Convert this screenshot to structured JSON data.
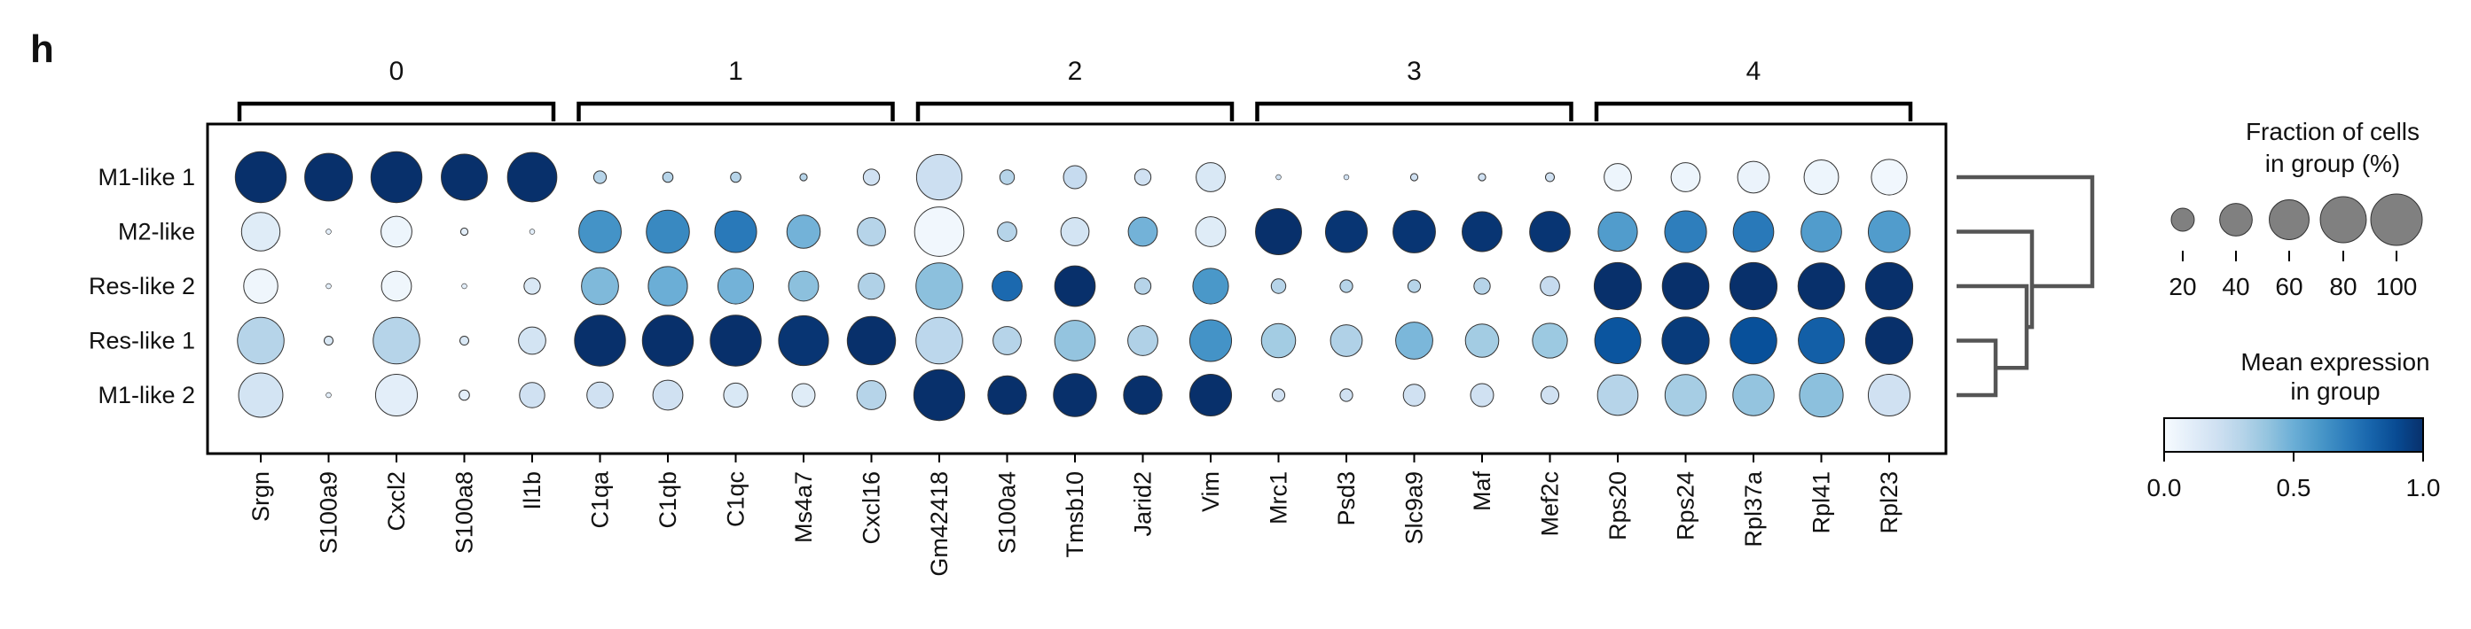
{
  "panel_label": "h",
  "chart_data": {
    "type": "dotplot",
    "groups": [
      "M1-like 1",
      "M2-like",
      "Res-like 2",
      "Res-like 1",
      "M1-like 2"
    ],
    "gene_groups": [
      {
        "label": "0",
        "genes": [
          "Srgn",
          "S100a9",
          "Cxcl2",
          "S100a8",
          "Il1b"
        ]
      },
      {
        "label": "1",
        "genes": [
          "C1qa",
          "C1qb",
          "C1qc",
          "Ms4a7",
          "Cxcl16"
        ]
      },
      {
        "label": "2",
        "genes": [
          "Gm42418",
          "S100a4",
          "Tmsb10",
          "Jarid2",
          "Vim"
        ]
      },
      {
        "label": "3",
        "genes": [
          "Mrc1",
          "Psd3",
          "Slc9a9",
          "Maf",
          "Mef2c"
        ]
      },
      {
        "label": "4",
        "genes": [
          "Rps20",
          "Rps24",
          "Rpl37a",
          "Rpl41",
          "Rpl23"
        ]
      }
    ],
    "genes": [
      "Srgn",
      "S100a9",
      "Cxcl2",
      "S100a8",
      "Il1b",
      "C1qa",
      "C1qb",
      "C1qc",
      "Ms4a7",
      "Cxcl16",
      "Gm42418",
      "S100a4",
      "Tmsb10",
      "Jarid2",
      "Vim",
      "Mrc1",
      "Psd3",
      "Slc9a9",
      "Maf",
      "Mef2c",
      "Rps20",
      "Rps24",
      "Rpl37a",
      "Rpl41",
      "Rpl23"
    ],
    "fraction_percent": [
      [
        98,
        86,
        98,
        80,
        92,
        6,
        4,
        4,
        2,
        10,
        78,
        8,
        20,
        10,
        32,
        1,
        1,
        2,
        2,
        3,
        28,
        32,
        38,
        45,
        48
      ],
      [
        56,
        1,
        36,
        2,
        1,
        68,
        70,
        66,
        42,
        30,
        92,
        14,
        30,
        32,
        34,
        80,
        66,
        68,
        60,
        62,
        58,
        66,
        62,
        62,
        66
      ],
      [
        44,
        1,
        34,
        1,
        10,
        52,
        58,
        48,
        34,
        26,
        82,
        34,
        62,
        10,
        48,
        8,
        6,
        6,
        10,
        14,
        84,
        82,
        84,
        82,
        84
      ],
      [
        82,
        3,
        82,
        3,
        28,
        98,
        98,
        98,
        94,
        88,
        82,
        30,
        62,
        34,
        66,
        44,
        38,
        52,
        42,
        46,
        80,
        84,
        82,
        80,
        84
      ],
      [
        74,
        1,
        66,
        4,
        24,
        26,
        34,
        22,
        20,
        32,
        98,
        56,
        70,
        56,
        66,
        6,
        6,
        18,
        20,
        12,
        62,
        64,
        64,
        72,
        66
      ]
    ],
    "mean_expression": [
      [
        1.0,
        1.0,
        1.0,
        1.0,
        1.0,
        0.3,
        0.3,
        0.3,
        0.3,
        0.2,
        0.22,
        0.3,
        0.25,
        0.2,
        0.15,
        0.2,
        0.2,
        0.2,
        0.2,
        0.2,
        0.05,
        0.05,
        0.06,
        0.05,
        0.03
      ],
      [
        0.12,
        0.1,
        0.05,
        0.1,
        0.1,
        0.62,
        0.66,
        0.72,
        0.48,
        0.3,
        0.03,
        0.3,
        0.18,
        0.48,
        0.12,
        1.0,
        0.98,
        0.98,
        0.98,
        0.98,
        0.58,
        0.7,
        0.72,
        0.58,
        0.58
      ],
      [
        0.04,
        0.1,
        0.04,
        0.1,
        0.15,
        0.45,
        0.5,
        0.48,
        0.42,
        0.32,
        0.42,
        0.78,
        1.0,
        0.3,
        0.6,
        0.3,
        0.3,
        0.3,
        0.3,
        0.25,
        1.0,
        1.0,
        1.0,
        1.0,
        1.0
      ],
      [
        0.3,
        0.15,
        0.3,
        0.15,
        0.18,
        1.0,
        1.0,
        1.0,
        0.98,
        1.0,
        0.28,
        0.3,
        0.4,
        0.32,
        0.62,
        0.36,
        0.32,
        0.46,
        0.36,
        0.38,
        0.86,
        0.96,
        0.88,
        0.82,
        1.0
      ],
      [
        0.18,
        0.1,
        0.1,
        0.1,
        0.2,
        0.2,
        0.2,
        0.15,
        0.12,
        0.3,
        1.0,
        1.0,
        1.0,
        1.0,
        1.0,
        0.2,
        0.2,
        0.2,
        0.2,
        0.2,
        0.3,
        0.35,
        0.4,
        0.42,
        0.2
      ]
    ],
    "dendrogram": {
      "order": [
        "M1-like 1",
        "M2-like",
        "Res-like 2",
        "Res-like 1",
        "M1-like 2"
      ],
      "color": "#555555"
    },
    "size_legend": {
      "title_line1": "Fraction of cells",
      "title_line2": "in group (%)",
      "ticks": [
        "20",
        "40",
        "60",
        "80",
        "100"
      ],
      "values": [
        20,
        40,
        60,
        80,
        100
      ],
      "dot_color": "#808080"
    },
    "color_legend": {
      "title_line1": "Mean expression",
      "title_line2": "in group",
      "ticks": [
        "0.0",
        "0.5",
        "1.0"
      ],
      "range": [
        0.0,
        1.0
      ],
      "colormap": "Blues",
      "low_color": "#f7fbff",
      "high_color": "#08306b"
    }
  }
}
